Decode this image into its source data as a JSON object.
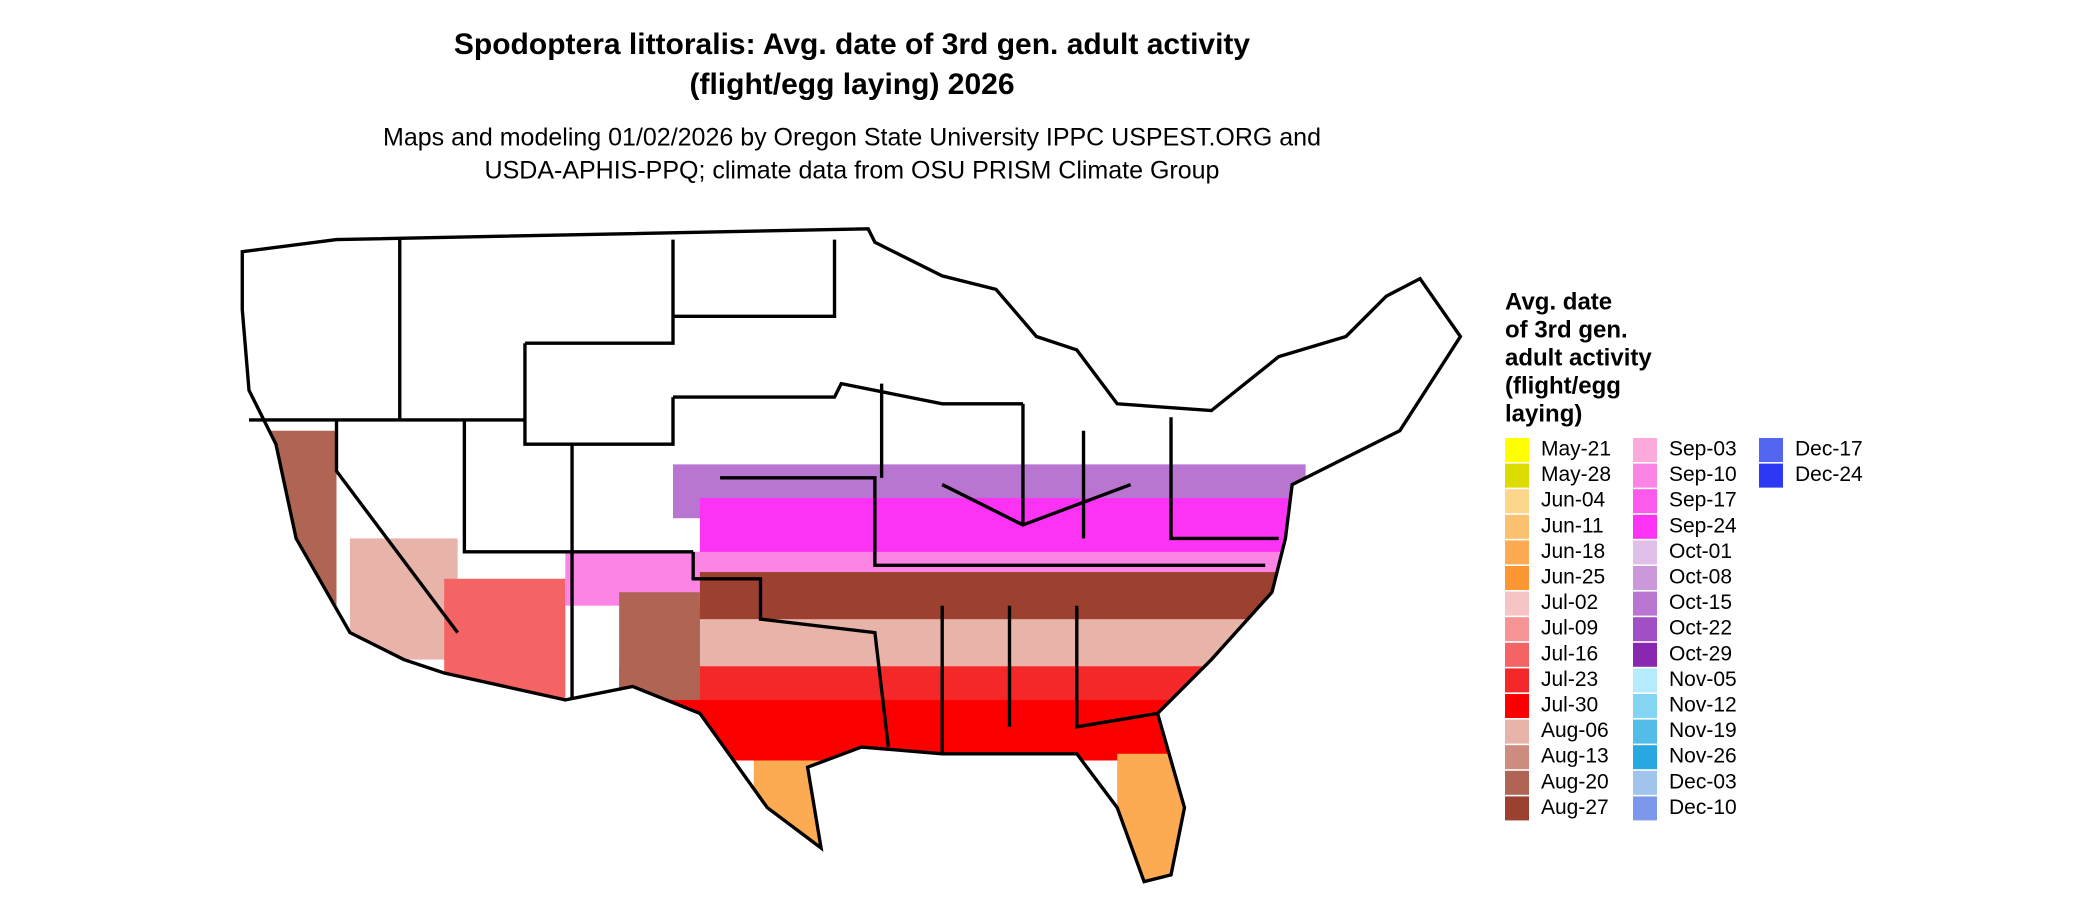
{
  "title": [
    "Spodoptera littoralis: Avg. date of 3rd gen. adult activity",
    "(flight/egg laying) 2026"
  ],
  "subtitle": [
    "Maps and modeling 01/02/2026 by Oregon State University IPPC USPEST.ORG and",
    "USDA-APHIS-PPQ; climate data from OSU PRISM Climate Group"
  ],
  "legend": {
    "title": [
      "Avg. date",
      "of 3rd gen.",
      "adult activity",
      "(flight/egg",
      "laying)"
    ],
    "items": [
      {
        "label": "May-21",
        "color": "#ffff00"
      },
      {
        "label": "May-28",
        "color": "#dcdc00"
      },
      {
        "label": "Jun-04",
        "color": "#fcd68a"
      },
      {
        "label": "Jun-11",
        "color": "#fcc170"
      },
      {
        "label": "Jun-18",
        "color": "#fcab52"
      },
      {
        "label": "Jun-25",
        "color": "#fc9632"
      },
      {
        "label": "Jul-02",
        "color": "#f6c4c4"
      },
      {
        "label": "Jul-09",
        "color": "#f49494"
      },
      {
        "label": "Jul-16",
        "color": "#f46464"
      },
      {
        "label": "Jul-23",
        "color": "#f42828"
      },
      {
        "label": "Jul-30",
        "color": "#fc0000"
      },
      {
        "label": "Aug-06",
        "color": "#e8b4aa"
      },
      {
        "label": "Aug-13",
        "color": "#cc8c80"
      },
      {
        "label": "Aug-20",
        "color": "#b06454"
      },
      {
        "label": "Aug-27",
        "color": "#9c4030"
      },
      {
        "label": "Sep-03",
        "color": "#fcaadc"
      },
      {
        "label": "Sep-10",
        "color": "#fc84e4"
      },
      {
        "label": "Sep-17",
        "color": "#fc5aec"
      },
      {
        "label": "Sep-24",
        "color": "#fc32f4"
      },
      {
        "label": "Oct-01",
        "color": "#e0c0e8"
      },
      {
        "label": "Oct-08",
        "color": "#cc98dc"
      },
      {
        "label": "Oct-15",
        "color": "#b876d0"
      },
      {
        "label": "Oct-22",
        "color": "#a050c4"
      },
      {
        "label": "Oct-29",
        "color": "#8828b0"
      },
      {
        "label": "Nov-05",
        "color": "#b4ecfc"
      },
      {
        "label": "Nov-12",
        "color": "#84d4f4"
      },
      {
        "label": "Nov-19",
        "color": "#54bce8"
      },
      {
        "label": "Nov-26",
        "color": "#28a8e0"
      },
      {
        "label": "Dec-03",
        "color": "#a0c4ec"
      },
      {
        "label": "Dec-10",
        "color": "#7c98ec"
      },
      {
        "label": "Dec-17",
        "color": "#5466f0"
      },
      {
        "label": "Dec-24",
        "color": "#2c38f4"
      }
    ]
  }
}
